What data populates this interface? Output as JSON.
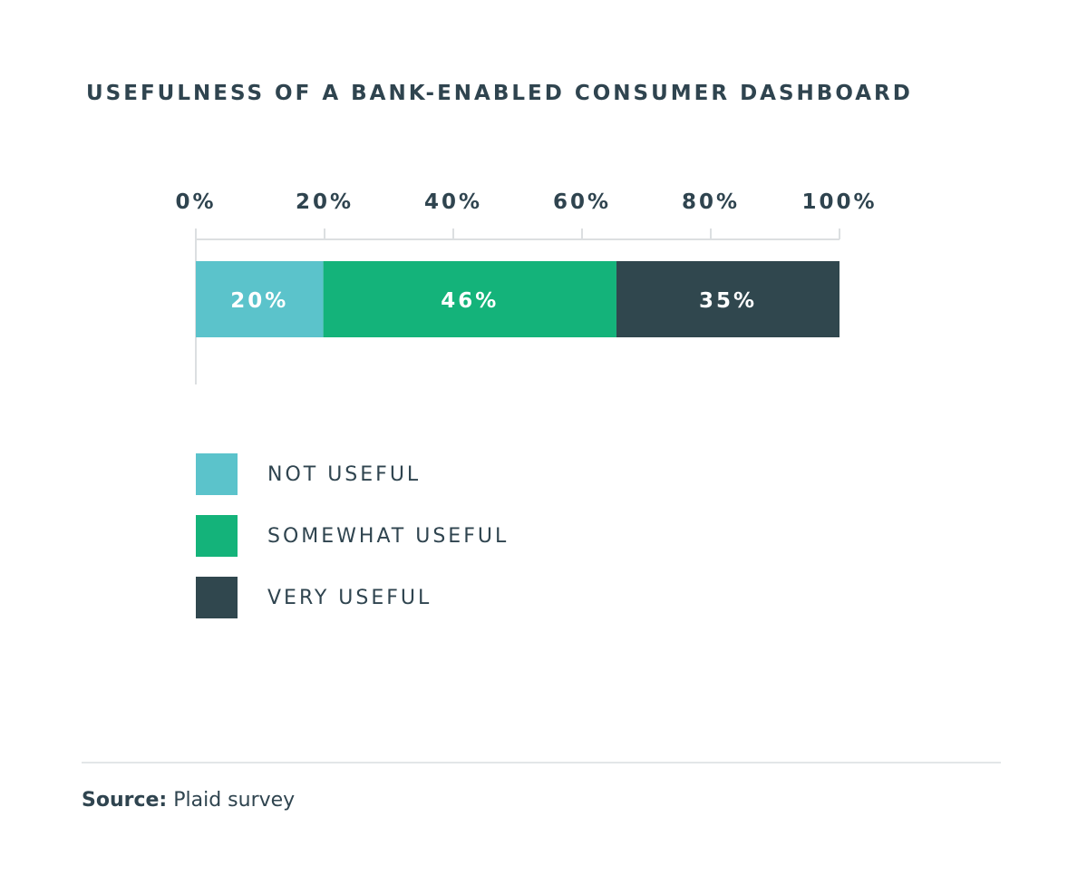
{
  "chart_data": {
    "type": "bar",
    "orientation": "horizontal",
    "stacked": true,
    "title": "USEFULNESS OF A BANK-ENABLED CONSUMER DASHBOARD",
    "xlim": [
      0,
      100
    ],
    "ticks": [
      0,
      20,
      40,
      60,
      80,
      100
    ],
    "tick_labels": [
      "0%",
      "20%",
      "40%",
      "60%",
      "80%",
      "100%"
    ],
    "axis_position": "top",
    "legend_position": "bottom-left",
    "segments": [
      {
        "name": "NOT USEFUL",
        "value": 20,
        "label": "20%",
        "color": "#5bc3cb"
      },
      {
        "name": "SOMEWHAT USEFUL",
        "value": 46,
        "label": "46%",
        "color": "#14b37a"
      },
      {
        "name": "VERY USEFUL",
        "value": 35,
        "label": "35%",
        "color": "#30474e"
      }
    ]
  },
  "source": {
    "label": "Source:",
    "text": "Plaid survey"
  },
  "colors": {
    "text": "#2f444f",
    "axis": "#dcdfe1",
    "divider": "#e3e6e8"
  }
}
